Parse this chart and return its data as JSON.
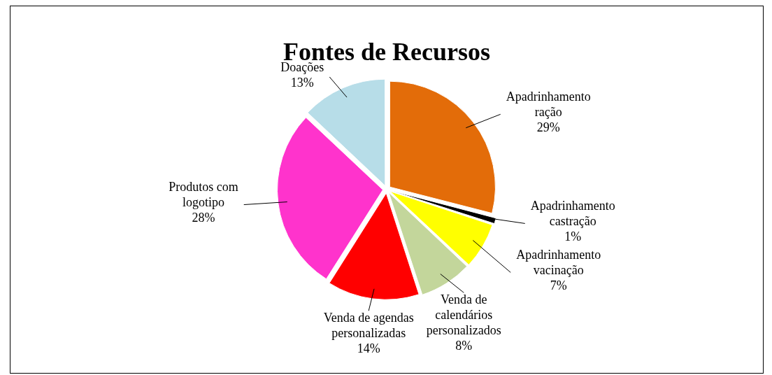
{
  "chart_data": {
    "type": "pie",
    "title": "Fontes de Recursos",
    "categories": [
      "Apadrinhamento ração",
      "Apadrinhamento castração",
      "Apadrinhamento vacinação",
      "Venda de calendários personalizados",
      "Venda de agendas personalizadas",
      "Produtos com logotipo",
      "Doações"
    ],
    "values": [
      29,
      1,
      7,
      8,
      14,
      28,
      13
    ],
    "colors": [
      "#e36c09",
      "#000000",
      "#ffff00",
      "#c3d69b",
      "#ff0000",
      "#ff33cc",
      "#b7dde8"
    ],
    "value_labels": [
      "29%",
      "1%",
      "7%",
      "8%",
      "14%",
      "28%",
      "13%"
    ],
    "legend": false
  }
}
